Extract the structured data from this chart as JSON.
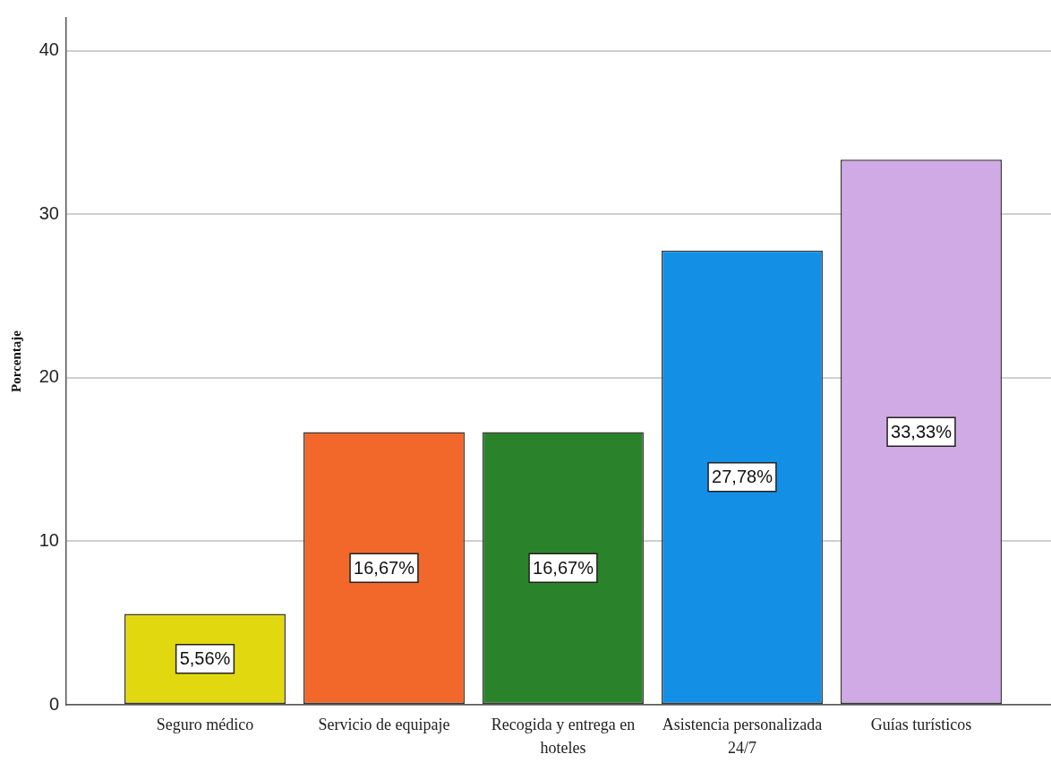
{
  "chart_data": {
    "type": "bar",
    "ylabel": "Porcentaje",
    "categories": [
      "Seguro médico",
      "Servicio de equipaje",
      "Recogida y entrega en hoteles",
      "Asistencia personalizada 24/7",
      "Guías turísticos"
    ],
    "values": [
      5.56,
      16.67,
      16.67,
      27.78,
      33.33
    ],
    "colors": [
      "#e2d80f",
      "#f2682a",
      "#2a832a",
      "#1390e6",
      "#d0aae4"
    ],
    "value_labels": [
      "5,56%",
      "16,67%",
      "16,67%",
      "27,78%",
      "33,33%"
    ],
    "ylim": [
      0,
      42
    ],
    "yticks": [
      0,
      10,
      20,
      30,
      40
    ],
    "grid": "y"
  }
}
